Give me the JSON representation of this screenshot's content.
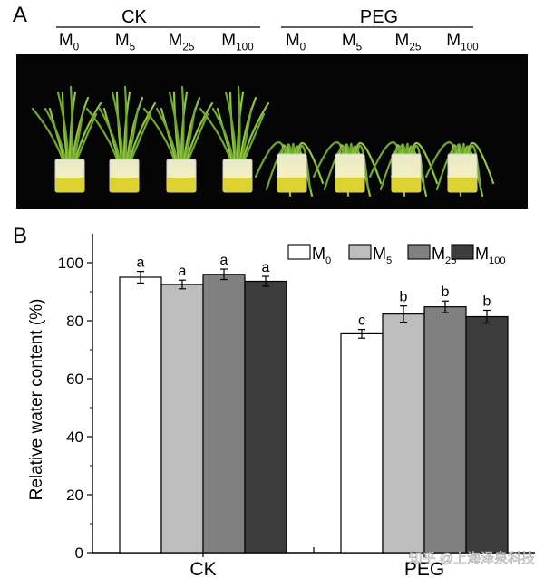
{
  "panel_a": {
    "label": "A",
    "groups": [
      {
        "name": "CK",
        "treatments": [
          {
            "base": "M",
            "sub": "0"
          },
          {
            "base": "M",
            "sub": "5"
          },
          {
            "base": "M",
            "sub": "25"
          },
          {
            "base": "M",
            "sub": "100"
          }
        ]
      },
      {
        "name": "PEG",
        "treatments": [
          {
            "base": "M",
            "sub": "0"
          },
          {
            "base": "M",
            "sub": "5"
          },
          {
            "base": "M",
            "sub": "25"
          },
          {
            "base": "M",
            "sub": "100"
          }
        ]
      }
    ]
  },
  "chart_data": {
    "panel_label": "B",
    "type": "bar",
    "categories": [
      "CK",
      "PEG"
    ],
    "ylabel": "Relative water content (%)",
    "xlabel": "",
    "ylim": [
      0,
      110
    ],
    "yticks": [
      0,
      20,
      40,
      60,
      80,
      100
    ],
    "legend_position": "top-right",
    "series": [
      {
        "name": "M",
        "sub": "0",
        "color": "#ffffff",
        "values": [
          95,
          75.5
        ],
        "errors": [
          2,
          1.5
        ],
        "letters": [
          "a",
          "c"
        ]
      },
      {
        "name": "M",
        "sub": "5",
        "color": "#bdbdbd",
        "values": [
          92.5,
          82.3
        ],
        "errors": [
          1.5,
          2.8
        ],
        "letters": [
          "a",
          "b"
        ]
      },
      {
        "name": "M",
        "sub": "25",
        "color": "#808080",
        "values": [
          96,
          84.8
        ],
        "errors": [
          1.8,
          2
        ],
        "letters": [
          "a",
          "b"
        ]
      },
      {
        "name": "M",
        "sub": "100",
        "color": "#3c3c3c",
        "values": [
          93.6,
          81.4
        ],
        "errors": [
          1.7,
          2.2
        ],
        "letters": [
          "a",
          "b"
        ]
      }
    ]
  },
  "watermark": "知乎 @上海泽泉科技"
}
